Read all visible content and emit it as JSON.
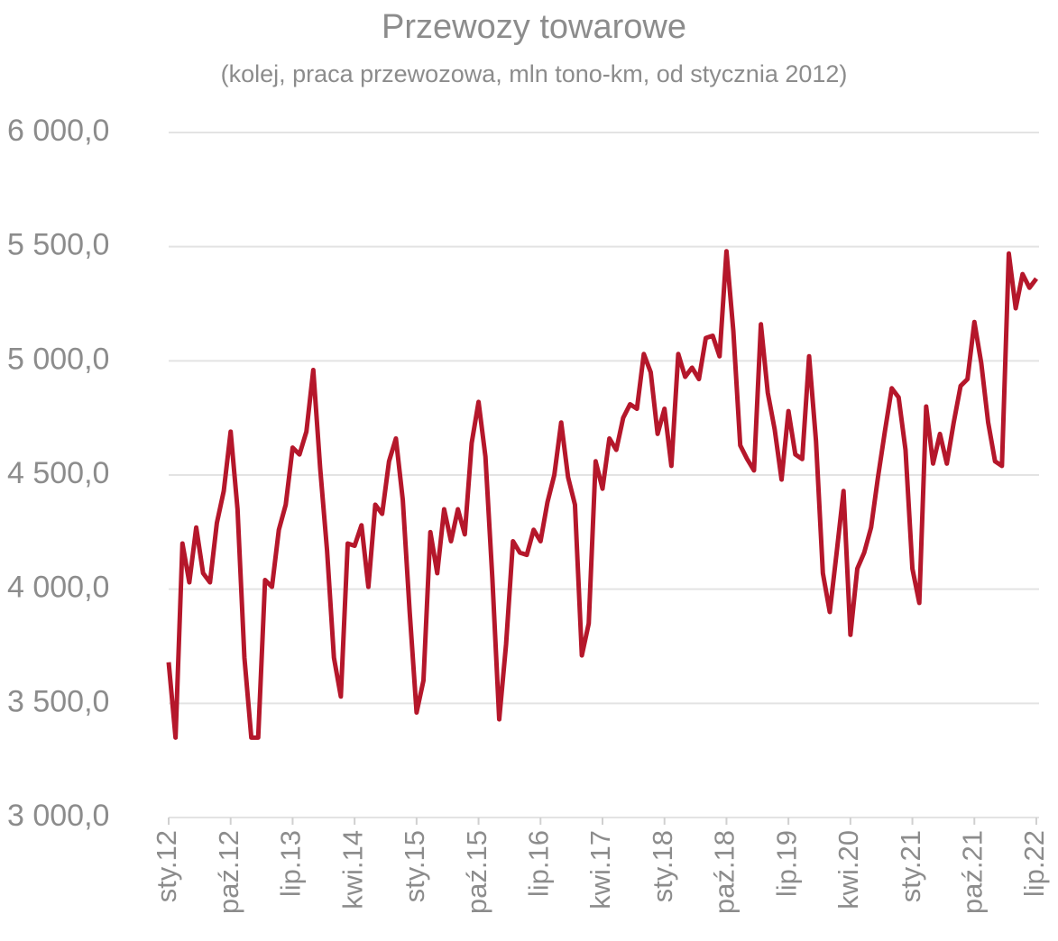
{
  "chart_data": {
    "type": "line",
    "title": "Przewozy towarowe",
    "subtitle": "(kolej, praca przewozowa, mln tono-km, od stycznia 2012)",
    "categories": [
      "sty.12",
      null,
      null,
      null,
      null,
      null,
      null,
      null,
      null,
      "paź.12",
      null,
      null,
      null,
      null,
      null,
      null,
      null,
      null,
      "lip.13",
      null,
      null,
      null,
      null,
      null,
      null,
      null,
      null,
      "kwi.14",
      null,
      null,
      null,
      null,
      null,
      null,
      null,
      null,
      "sty.15",
      null,
      null,
      null,
      null,
      null,
      null,
      null,
      null,
      "paź.15",
      null,
      null,
      null,
      null,
      null,
      null,
      null,
      null,
      "lip.16",
      null,
      null,
      null,
      null,
      null,
      null,
      null,
      null,
      "kwi.17",
      null,
      null,
      null,
      null,
      null,
      null,
      null,
      null,
      "sty.18",
      null,
      null,
      null,
      null,
      null,
      null,
      null,
      null,
      "paź.18",
      null,
      null,
      null,
      null,
      null,
      null,
      null,
      null,
      "lip.19",
      null,
      null,
      null,
      null,
      null,
      null,
      null,
      null,
      "kwi.20",
      null,
      null,
      null,
      null,
      null,
      null,
      null,
      null,
      "sty.21",
      null,
      null,
      null,
      null,
      null,
      null,
      null,
      null,
      "paź.21",
      null,
      null,
      null,
      null,
      null,
      null,
      null,
      null,
      "lip.22"
    ],
    "series": [
      {
        "color": "#b5172b",
        "values": [
          3680,
          3350,
          4200,
          4030,
          4270,
          4070,
          4030,
          4290,
          4430,
          4690,
          4350,
          3700,
          3350,
          3350,
          4040,
          4010,
          4260,
          4370,
          4620,
          4590,
          4690,
          4960,
          4530,
          4170,
          3700,
          3530,
          4200,
          4190,
          4280,
          4010,
          4370,
          4330,
          4560,
          4660,
          4390,
          3900,
          3460,
          3600,
          4250,
          4070,
          4350,
          4210,
          4350,
          4240,
          4640,
          4820,
          4580,
          4050,
          3430,
          3760,
          4210,
          4160,
          4150,
          4260,
          4210,
          4380,
          4500,
          4730,
          4490,
          4370,
          3710,
          3850,
          4560,
          4440,
          4660,
          4610,
          4750,
          4810,
          4790,
          5030,
          4950,
          4680,
          4790,
          4540,
          5030,
          4930,
          4970,
          4920,
          5100,
          5110,
          5020,
          5480,
          5130,
          4630,
          4570,
          4520,
          5160,
          4860,
          4700,
          4480,
          4780,
          4590,
          4570,
          5020,
          4650,
          4070,
          3900,
          4160,
          4430,
          3800,
          4090,
          4160,
          4270,
          4490,
          4690,
          4880,
          4840,
          4610,
          4090,
          3940,
          4800,
          4550,
          4680,
          4550,
          4730,
          4890,
          4920,
          5170,
          4990,
          4730,
          4560,
          4540,
          5470,
          5230,
          5380,
          5320,
          5360
        ]
      }
    ],
    "ylim": [
      3000,
      6000
    ],
    "yticks": [
      {
        "value": 3000,
        "label": "3 000,0"
      },
      {
        "value": 3500,
        "label": "3 500,0"
      },
      {
        "value": 4000,
        "label": "4 000,0"
      },
      {
        "value": 4500,
        "label": "4 500,0"
      },
      {
        "value": 5000,
        "label": "5 000,0"
      },
      {
        "value": 5500,
        "label": "5 500,0"
      },
      {
        "value": 6000,
        "label": "6 000,0"
      }
    ],
    "grid": true
  }
}
